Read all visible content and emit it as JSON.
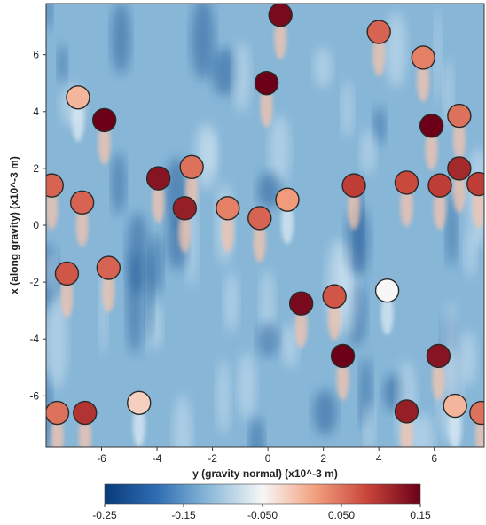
{
  "chart_data": {
    "type": "heatmap",
    "xlabel": "y (gravity normal) (x10^-3 m)",
    "ylabel": "x (along gravity) (x10^-3 m)",
    "xlim": [
      -8.0,
      7.8
    ],
    "ylim": [
      -7.8,
      7.8
    ],
    "xticks": [
      -6,
      -4,
      -2,
      0,
      2,
      4,
      6
    ],
    "yticks": [
      -6,
      -4,
      -2,
      0,
      2,
      4,
      6
    ],
    "xtick_labels": [
      "-6",
      "-4",
      "-2",
      "0",
      "2",
      "4",
      "6"
    ],
    "ytick_labels": [
      "-6",
      "-4",
      "-2",
      "0",
      "2",
      "4",
      "6"
    ],
    "colorbar": {
      "range": [
        -0.25,
        0.15
      ],
      "ticks": [
        -0.25,
        -0.15,
        -0.05,
        0.05,
        0.15
      ],
      "tick_labels": [
        "-0.25",
        "-0.15",
        "-0.050",
        "0.050",
        "0.15"
      ],
      "colors": [
        "#083a7a",
        "#2f6eb3",
        "#8cbad9",
        "#f7f7f7",
        "#f2a07e",
        "#c8443a",
        "#6b0018"
      ]
    },
    "background_value": -0.12,
    "bubbles": [
      {
        "y": 0.45,
        "x": 7.4,
        "value": 0.14
      },
      {
        "y": 4.0,
        "x": 6.8,
        "value": 0.06
      },
      {
        "y": 5.6,
        "x": 5.9,
        "value": 0.04
      },
      {
        "y": -0.05,
        "x": 5.0,
        "value": 0.15
      },
      {
        "y": -6.85,
        "x": 4.5,
        "value": 0.0
      },
      {
        "y": -5.9,
        "x": 3.7,
        "value": 0.15
      },
      {
        "y": 5.9,
        "x": 3.5,
        "value": 0.15
      },
      {
        "y": 6.9,
        "x": 3.85,
        "value": 0.05
      },
      {
        "y": -2.75,
        "x": 2.05,
        "value": 0.05
      },
      {
        "y": 6.9,
        "x": 2.0,
        "value": 0.11
      },
      {
        "y": -3.95,
        "x": 1.65,
        "value": 0.13
      },
      {
        "y": -7.8,
        "x": 1.4,
        "value": 0.06
      },
      {
        "y": 3.1,
        "x": 1.4,
        "value": 0.09
      },
      {
        "y": 5.0,
        "x": 1.5,
        "value": 0.08
      },
      {
        "y": 6.2,
        "x": 1.4,
        "value": 0.09
      },
      {
        "y": 7.6,
        "x": 1.45,
        "value": 0.09
      },
      {
        "y": -6.7,
        "x": 0.8,
        "value": 0.06
      },
      {
        "y": -3.0,
        "x": 0.6,
        "value": 0.12
      },
      {
        "y": -1.45,
        "x": 0.6,
        "value": 0.04
      },
      {
        "y": 0.7,
        "x": 0.9,
        "value": 0.02
      },
      {
        "y": -0.3,
        "x": 0.25,
        "value": 0.06
      },
      {
        "y": -7.25,
        "x": -1.7,
        "value": 0.07
      },
      {
        "y": -5.75,
        "x": -1.5,
        "value": 0.06
      },
      {
        "y": 4.3,
        "x": -2.3,
        "value": -0.05
      },
      {
        "y": 1.2,
        "x": -2.75,
        "value": 0.14
      },
      {
        "y": 2.4,
        "x": -2.5,
        "value": 0.07
      },
      {
        "y": 2.7,
        "x": -4.6,
        "value": 0.15
      },
      {
        "y": 6.15,
        "x": -4.6,
        "value": 0.13
      },
      {
        "y": -4.65,
        "x": -6.25,
        "value": -0.02
      },
      {
        "y": 6.75,
        "x": -6.35,
        "value": 0.0
      },
      {
        "y": -7.6,
        "x": -6.6,
        "value": 0.05
      },
      {
        "y": -6.6,
        "x": -6.6,
        "value": 0.1
      },
      {
        "y": 5.0,
        "x": -6.55,
        "value": 0.12
      },
      {
        "y": 7.7,
        "x": -6.6,
        "value": 0.05
      }
    ]
  }
}
